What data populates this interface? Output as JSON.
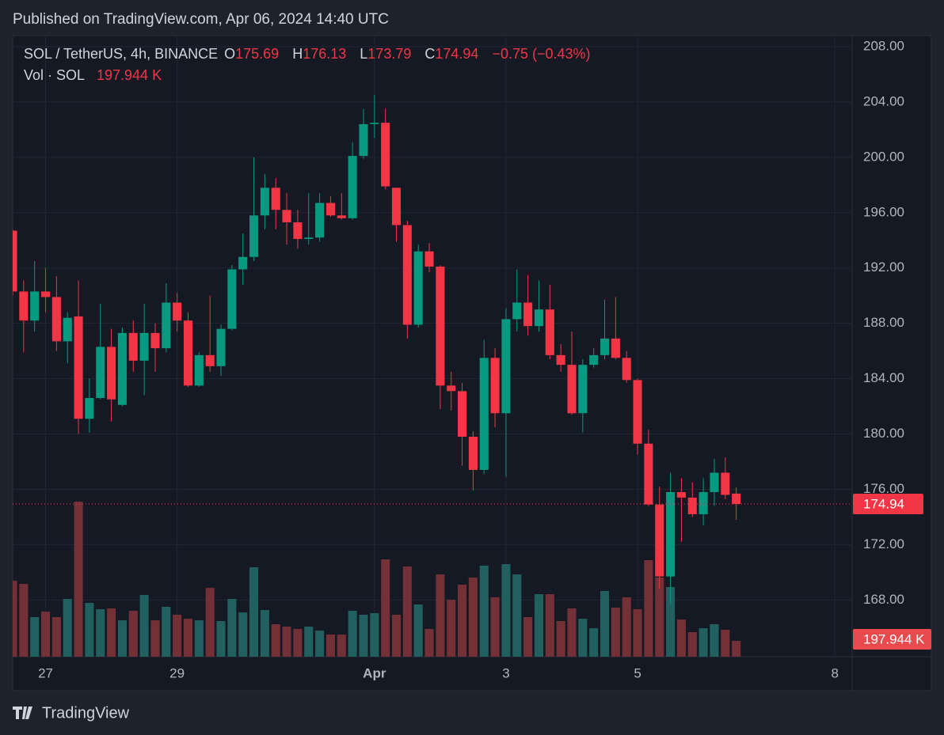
{
  "header": "Published on TradingView.com, Apr 06, 2024 14:40 UTC",
  "logo": "TradingView",
  "chart_data": {
    "type": "candlestick",
    "legend": {
      "symbol": "SOL / TetherUS, 4h, BINANCE",
      "open_label": "O",
      "high_label": "H",
      "low_label": "L",
      "close_label": "C",
      "change": "−0.75 (−0.43%)",
      "volume_title": "Vol · SOL",
      "volume": "197.944 K"
    },
    "up_color": "#089981",
    "down_color": "#f23645",
    "volume_up_color": "#22605f",
    "volume_down_color": "#733036",
    "open": [
      194.7,
      190.3,
      188.2,
      190.3,
      189.9,
      186.7,
      188.5,
      181.1,
      182.6,
      186.3,
      182.1,
      187.3,
      185.3,
      187.3,
      186.2,
      189.5,
      188.2,
      183.5,
      185.7,
      184.9,
      187.6,
      191.9,
      192.8,
      195.8,
      197.8,
      196.2,
      195.3,
      194.1,
      194.2,
      196.7,
      195.8,
      195.6,
      200.1,
      202.4,
      202.5,
      197.8,
      195.1,
      187.9,
      193.2,
      192.1,
      183.5,
      183.1,
      179.8,
      177.4,
      185.5,
      181.5,
      188.3,
      189.5,
      187.8,
      189.0,
      185.7,
      185.0,
      181.5,
      185.0,
      185.7,
      186.9,
      185.5,
      183.9,
      179.3,
      174.9,
      169.7,
      175.8,
      175.4,
      174.2,
      175.8,
      177.2,
      175.69
    ],
    "high": [
      194.8,
      191.1,
      192.5,
      192.0,
      191.4,
      188.8,
      191.1,
      184.0,
      189.4,
      187.6,
      187.7,
      188.2,
      189.4,
      188.0,
      190.9,
      190.2,
      188.8,
      185.9,
      190.0,
      187.9,
      192.2,
      194.5,
      200.0,
      198.8,
      198.5,
      197.4,
      196.2,
      197.4,
      197.4,
      197.2,
      197.4,
      201.1,
      203.5,
      204.5,
      203.5,
      197.8,
      195.4,
      193.7,
      193.8,
      192.2,
      184.5,
      183.7,
      180.2,
      186.8,
      186.2,
      189.1,
      191.9,
      191.5,
      191.1,
      190.8,
      186.5,
      187.4,
      185.4,
      186.2,
      189.7,
      189.9,
      186.0,
      184.0,
      180.3,
      176.2,
      177.2,
      176.8,
      176.5,
      176.8,
      178.2,
      178.3,
      176.13
    ],
    "low": [
      190.0,
      185.9,
      187.4,
      188.8,
      186.0,
      185.1,
      180.0,
      180.1,
      182.5,
      180.9,
      182.0,
      184.5,
      182.8,
      184.5,
      185.9,
      187.4,
      183.4,
      183.4,
      184.5,
      184.2,
      187.5,
      190.8,
      192.5,
      194.8,
      194.8,
      193.7,
      193.4,
      193.7,
      193.9,
      195.7,
      195.5,
      195.5,
      199.9,
      201.4,
      197.7,
      193.9,
      186.9,
      187.7,
      191.7,
      181.8,
      181.7,
      177.7,
      175.9,
      177.1,
      180.5,
      176.9,
      187.4,
      187.1,
      187.4,
      185.4,
      184.5,
      181.4,
      180.1,
      184.8,
      185.4,
      185.4,
      183.7,
      178.5,
      174.8,
      168.8,
      167.7,
      172.2,
      174.0,
      173.4,
      174.8,
      175.3,
      173.79
    ],
    "close": [
      190.3,
      188.2,
      190.3,
      189.9,
      186.7,
      188.4,
      181.1,
      182.6,
      186.3,
      182.5,
      187.3,
      185.3,
      187.3,
      186.2,
      189.5,
      188.2,
      183.5,
      185.7,
      184.9,
      187.6,
      191.9,
      192.8,
      195.8,
      197.8,
      196.2,
      195.3,
      194.1,
      194.2,
      196.7,
      195.8,
      195.6,
      200.1,
      202.4,
      202.5,
      197.9,
      195.1,
      187.9,
      193.2,
      192.1,
      183.5,
      183.1,
      179.8,
      177.4,
      185.5,
      181.5,
      188.3,
      189.5,
      187.8,
      189.0,
      185.7,
      185.0,
      181.5,
      185.0,
      185.7,
      186.9,
      185.5,
      183.9,
      179.3,
      174.9,
      169.7,
      175.8,
      175.4,
      174.2,
      175.8,
      177.2,
      175.6,
      174.94
    ],
    "volume": [
      950,
      911,
      495,
      564,
      495,
      723,
      1940,
      673,
      594,
      604,
      455,
      574,
      772,
      455,
      624,
      525,
      475,
      455,
      861,
      446,
      723,
      554,
      1119,
      584,
      406,
      376,
      347,
      376,
      327,
      277,
      277,
      574,
      525,
      545,
      1218,
      525,
      1129,
      653,
      347,
      1030,
      713,
      901,
      990,
      1139,
      743,
      1158,
      1030,
      495,
      782,
      782,
      446,
      604,
      475,
      356,
      822,
      614,
      743,
      594,
      1208,
      990,
      871,
      465,
      307,
      356,
      406,
      337,
      197.944
    ],
    "volume_lim": [
      0,
      2000
    ],
    "ylim": [
      163.9,
      208.8
    ],
    "yticks": [
      {
        "value": 168,
        "label": "168.00"
      },
      {
        "value": 172,
        "label": "172.00"
      },
      {
        "value": 176,
        "label": "176.00"
      },
      {
        "value": 180,
        "label": "180.00"
      },
      {
        "value": 184,
        "label": "184.00"
      },
      {
        "value": 188,
        "label": "188.00"
      },
      {
        "value": 192,
        "label": "192.00"
      },
      {
        "value": 196,
        "label": "196.00"
      },
      {
        "value": 200,
        "label": "200.00"
      },
      {
        "value": 204,
        "label": "204.00"
      },
      {
        "value": 208,
        "label": "208.00"
      }
    ],
    "xlim": [
      0,
      76.5
    ],
    "xticks": [
      {
        "value": 3,
        "label": "27"
      },
      {
        "value": 15,
        "label": "29"
      },
      {
        "value": 33,
        "label": "Apr"
      },
      {
        "value": 45,
        "label": "3"
      },
      {
        "value": 57,
        "label": "5"
      },
      {
        "value": 75,
        "label": "8"
      }
    ],
    "grid": true
  }
}
